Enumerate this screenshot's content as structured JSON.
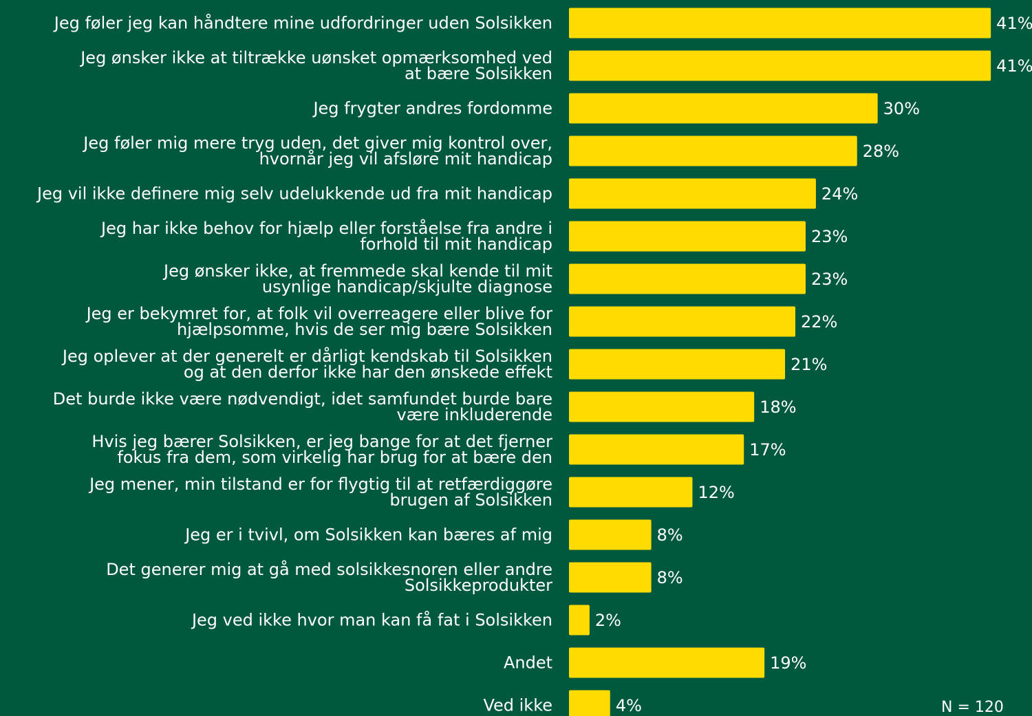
{
  "chart_data": {
    "type": "barh",
    "categories": [
      "Jeg føler jeg kan håndtere mine udfordringer uden Solsikken",
      "Jeg ønsker ikke at tiltrække uønsket opmærksomhed ved\nat bære Solsikken",
      "Jeg frygter andres fordomme",
      "Jeg føler mig mere tryg uden, det giver mig kontrol over,\nhvornår jeg vil afsløre mit handicap",
      "Jeg vil ikke definere mig selv udelukkende ud fra mit handicap",
      "Jeg har ikke behov for hjælp eller forståelse fra andre i\nforhold til mit handicap",
      "Jeg ønsker ikke, at fremmede skal kende til mit\nusynlige handicap/skjulte diagnose",
      "Jeg er bekymret for, at folk vil overreagere eller blive for\nhjælpsomme, hvis de ser mig bære Solsikken",
      "Jeg oplever at der generelt er dårligt kendskab til Solsikken\nog at den derfor ikke har den ønskede effekt",
      "Det burde ikke være nødvendigt, idet samfundet burde bare\nvære inkluderende",
      "Hvis jeg bærer Solsikken, er jeg bange for at det fjerner\nfokus fra dem, som virkelig har brug for at bære den",
      "Jeg mener, min tilstand er for flygtig til at retfærdiggøre\nbrugen af Solsikken",
      "Jeg er i tvivl, om Solsikken kan bæres af mig",
      "Det generer mig at gå med solsikkesnoren eller andre\nSolsikkeprodukter",
      "Jeg ved ikke hvor man kan få fat i Solsikken",
      "Andet",
      "Ved ikke"
    ],
    "values": [
      41,
      41,
      30,
      28,
      24,
      23,
      23,
      22,
      21,
      18,
      17,
      12,
      8,
      8,
      2,
      19,
      4
    ],
    "value_labels": [
      "41%",
      "41%",
      "30%",
      "28%",
      "24%",
      "23%",
      "23%",
      "22%",
      "21%",
      "18%",
      "17%",
      "12%",
      "8%",
      "8%",
      "2%",
      "19%",
      "4%"
    ],
    "color": "#FFDB00",
    "xlim": [
      0,
      45
    ],
    "note": "N = 120"
  }
}
